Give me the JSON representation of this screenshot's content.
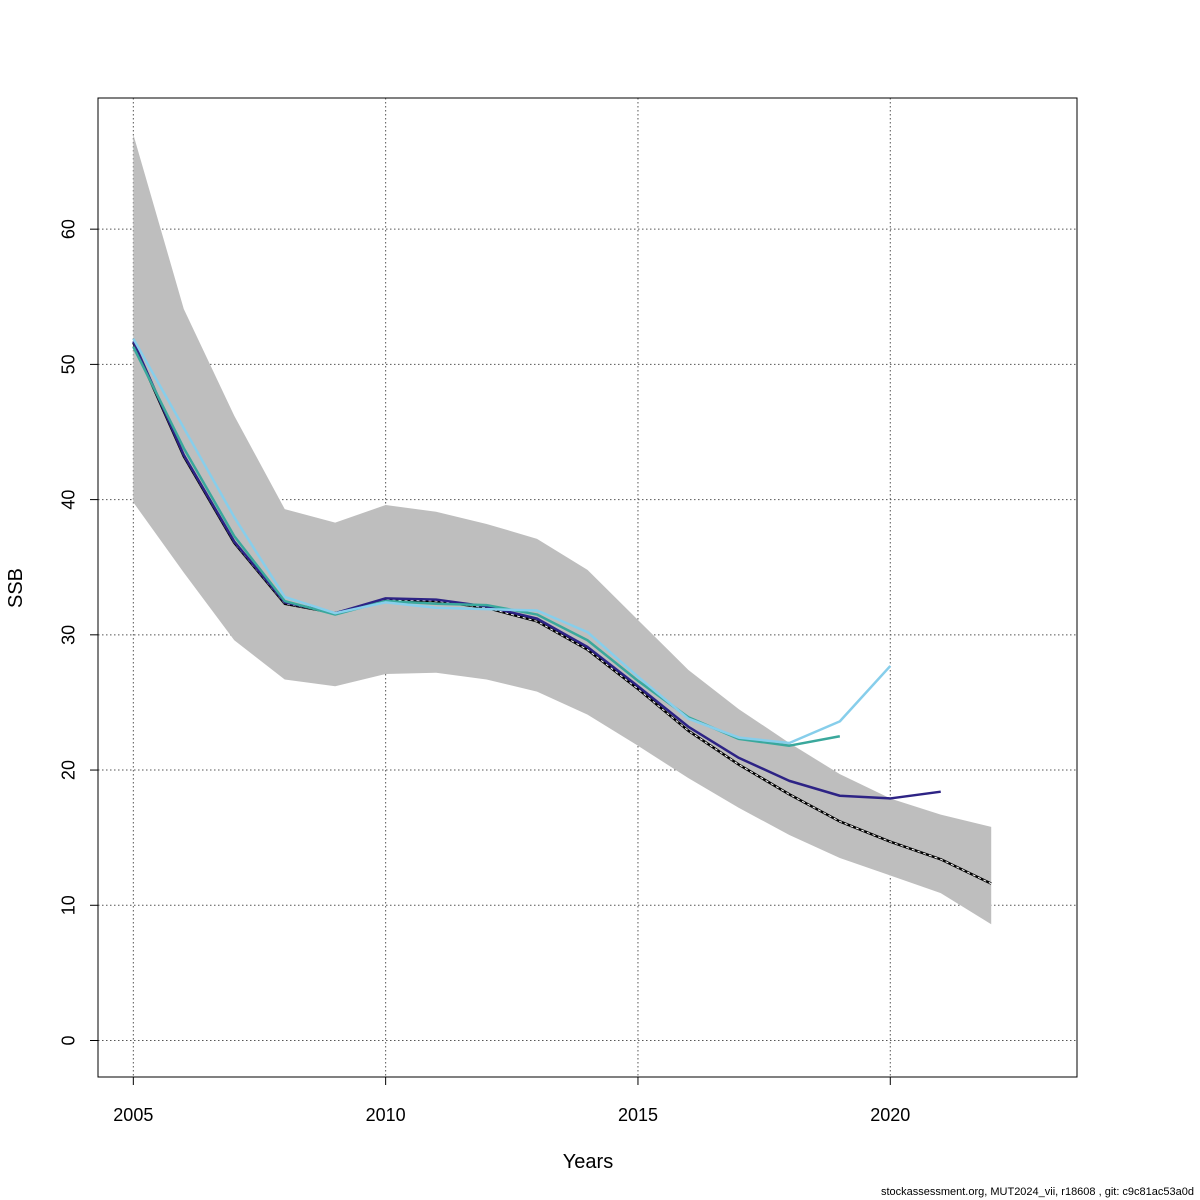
{
  "chart_data": {
    "type": "line",
    "title": "",
    "xlabel": "Years",
    "ylabel": "SSB",
    "xlim": [
      2004.3,
      2023.7
    ],
    "ylim": [
      -2.7,
      69.7
    ],
    "xticks": [
      2005,
      2010,
      2015,
      2020
    ],
    "yticks": [
      0,
      10,
      20,
      30,
      40,
      50,
      60
    ],
    "grid": true,
    "legend": "none",
    "confidence_band": {
      "x": [
        2005,
        2006,
        2007,
        2008,
        2009,
        2010,
        2011,
        2012,
        2013,
        2014,
        2015,
        2016,
        2017,
        2018,
        2019,
        2020,
        2021,
        2022
      ],
      "lower": [
        39.8,
        34.6,
        29.6,
        26.7,
        26.2,
        27.1,
        27.2,
        26.7,
        25.8,
        24.1,
        21.8,
        19.4,
        17.2,
        15.2,
        13.5,
        12.2,
        10.9,
        8.6
      ],
      "upper": [
        67.0,
        54.1,
        46.2,
        39.3,
        38.3,
        39.6,
        39.1,
        38.2,
        37.1,
        34.8,
        31.1,
        27.4,
        24.5,
        22.0,
        19.7,
        17.9,
        16.7,
        15.8
      ],
      "color": "#bebebe"
    },
    "series": [
      {
        "color": "#000000",
        "dashed": true,
        "x": [
          2005,
          2006,
          2007,
          2008,
          2009,
          2010,
          2011,
          2012,
          2013,
          2014,
          2015,
          2016,
          2017,
          2018,
          2019,
          2020,
          2021,
          2022
        ],
        "values": [
          51.6,
          43.2,
          36.8,
          32.3,
          31.6,
          32.6,
          32.5,
          32.0,
          31.0,
          28.9,
          26.0,
          22.9,
          20.4,
          18.2,
          16.2,
          14.7,
          13.4,
          11.6
        ]
      },
      {
        "color": "#2d2385",
        "dashed": false,
        "x": [
          2005,
          2006,
          2007,
          2008,
          2009,
          2010,
          2011,
          2012,
          2013,
          2014,
          2015,
          2016,
          2017,
          2018,
          2019,
          2020,
          2021
        ],
        "values": [
          51.7,
          43.3,
          36.9,
          32.4,
          31.6,
          32.7,
          32.6,
          32.1,
          31.2,
          29.1,
          26.2,
          23.2,
          20.9,
          19.2,
          18.1,
          17.9,
          18.4
        ]
      },
      {
        "color": "#3aa89c",
        "dashed": false,
        "x": [
          2005,
          2006,
          2007,
          2008,
          2009,
          2010,
          2011,
          2012,
          2013,
          2014,
          2015,
          2016,
          2017,
          2018,
          2019
        ],
        "values": [
          51.3,
          43.8,
          37.3,
          32.5,
          31.5,
          32.5,
          32.3,
          32.2,
          31.5,
          29.6,
          26.6,
          23.9,
          22.3,
          21.8,
          22.5
        ]
      },
      {
        "color": "#87ceeb",
        "dashed": false,
        "x": [
          2005,
          2006,
          2007,
          2008,
          2009,
          2010,
          2011,
          2012,
          2013,
          2014,
          2015,
          2016,
          2017,
          2018,
          2019,
          2020
        ],
        "values": [
          51.9,
          45.3,
          38.7,
          32.8,
          31.6,
          32.4,
          32.0,
          31.9,
          31.8,
          30.2,
          26.9,
          23.8,
          22.4,
          22.0,
          23.6,
          27.7
        ]
      }
    ]
  },
  "footer": {
    "text": "stockassessment.org, MUT2024_vii, r18608 , git: c9c81ac53a0d"
  }
}
